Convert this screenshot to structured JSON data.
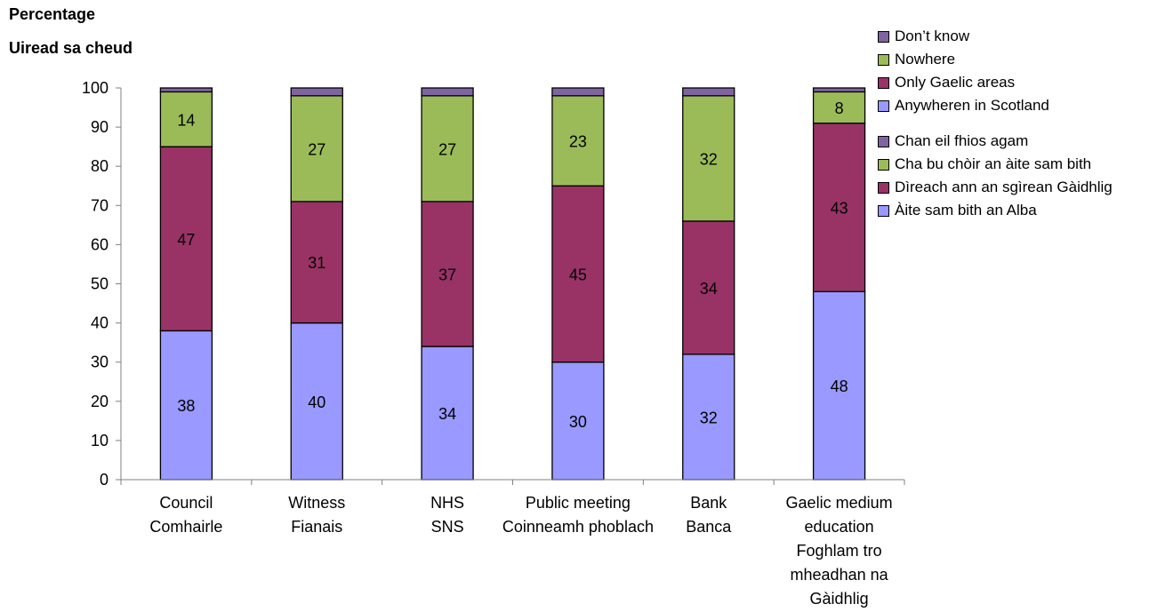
{
  "chart_data": {
    "type": "bar",
    "stacked": true,
    "ylabel_lines": [
      "Percentage",
      "Uiread sa cheud"
    ],
    "xlabel": "",
    "ylim": [
      0,
      100
    ],
    "yticks": [
      0,
      10,
      20,
      30,
      40,
      50,
      60,
      70,
      80,
      90,
      100
    ],
    "grid": false,
    "legend_position": "top-right",
    "categories": [
      [
        "Council",
        "Comhairle"
      ],
      [
        "Witness",
        "Fianais"
      ],
      [
        "NHS",
        "SNS"
      ],
      [
        "Public meeting",
        "Coinneamh phoblach"
      ],
      [
        "Bank",
        "Banca"
      ],
      [
        "Gaelic medium",
        "education",
        "Foghlam tro",
        "mheadhan na",
        "Gàidhlig"
      ]
    ],
    "series": [
      {
        "name": "Anywheren in Scotland",
        "name_gd": "Àite sam bith an Alba",
        "color": "#9999ff",
        "values": [
          38,
          40,
          34,
          30,
          32,
          48
        ],
        "show_labels": true
      },
      {
        "name": "Only Gaelic areas",
        "name_gd": "Dìreach ann an sgìrean Gàidhlig",
        "color": "#993366",
        "values": [
          47,
          31,
          37,
          45,
          34,
          43
        ],
        "show_labels": true
      },
      {
        "name": "Nowhere",
        "name_gd": "Cha bu chòir an àite sam bith",
        "color": "#9bbb59",
        "values": [
          14,
          27,
          27,
          23,
          32,
          8
        ],
        "show_labels": true
      },
      {
        "name": "Don’t know",
        "name_gd": "Chan eil fhios agam",
        "color": "#8064a2",
        "values": [
          1,
          2,
          2,
          2,
          2,
          1
        ],
        "show_labels": false
      }
    ]
  },
  "legend": {
    "english": [
      {
        "label": "Don’t know",
        "color": "#8064a2"
      },
      {
        "label": "Nowhere",
        "color": "#9bbb59"
      },
      {
        "label": "Only Gaelic areas",
        "color": "#993366"
      },
      {
        "label": "Anywheren in Scotland",
        "color": "#9999ff"
      }
    ],
    "gaelic": [
      {
        "label": "Chan eil fhios agam",
        "color": "#8064a2"
      },
      {
        "label": "Cha bu chòir an àite sam bith",
        "color": "#9bbb59"
      },
      {
        "label": "Dìreach ann an sgìrean Gàidhlig",
        "color": "#993366"
      },
      {
        "label": "Àite sam bith an Alba",
        "color": "#9999ff"
      }
    ]
  }
}
